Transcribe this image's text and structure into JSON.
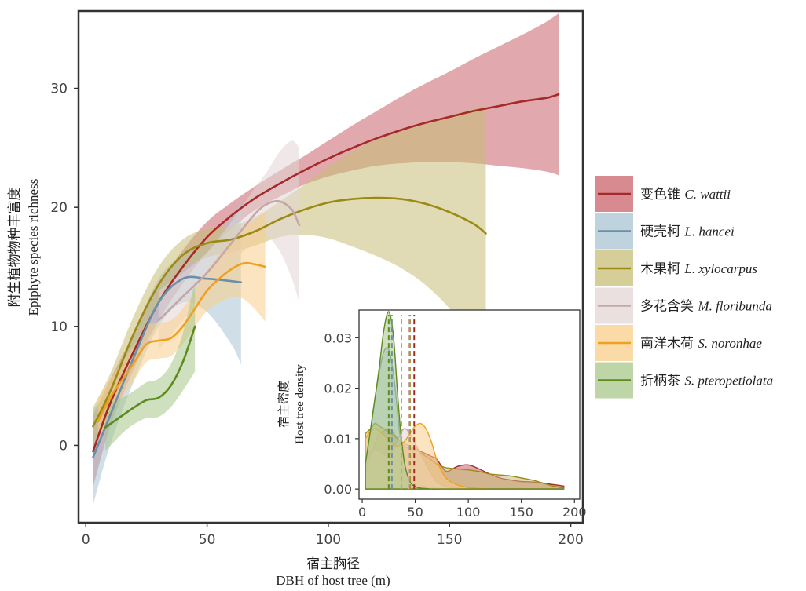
{
  "chart_data": [
    {
      "type": "line",
      "subtype": "smoothed-fit-with-confidence-band",
      "title": "",
      "xlabel_cn": "宿主胸径",
      "xlabel": "DBH of host tree (m)",
      "ylabel_cn": "附生植物物种丰富度",
      "ylabel": "Epiphyte species richness",
      "xlim": [
        -3,
        205
      ],
      "ylim": [
        -6.5,
        36.5
      ],
      "xticks": [
        0,
        50,
        100,
        150,
        200
      ],
      "yticks": [
        0,
        10,
        20,
        30
      ],
      "grid": false,
      "legend_position": "right",
      "series": [
        {
          "name_cn": "变色锥",
          "name": "C. wattii",
          "color": "#A52A2A",
          "band_color": "#C9636B",
          "x": [
            3,
            10,
            20,
            30,
            40,
            50,
            60,
            70,
            80,
            90,
            100,
            110,
            120,
            130,
            140,
            150,
            160,
            170,
            180,
            190,
            195
          ],
          "y": [
            -0.5,
            3.5,
            8.0,
            12.0,
            15.0,
            17.5,
            19.3,
            20.8,
            22.0,
            23.1,
            24.1,
            25.0,
            25.8,
            26.5,
            27.1,
            27.6,
            28.1,
            28.5,
            28.9,
            29.2,
            29.5
          ],
          "lower": [
            -3.5,
            1.5,
            6.5,
            10.5,
            13.6,
            16.2,
            18.2,
            19.8,
            20.9,
            21.9,
            22.6,
            23.1,
            23.5,
            23.7,
            23.8,
            23.8,
            23.7,
            23.5,
            23.3,
            23.0,
            22.7
          ],
          "upper": [
            2.5,
            5.5,
            9.5,
            13.5,
            16.4,
            18.8,
            20.4,
            21.8,
            23.1,
            24.3,
            25.6,
            26.9,
            28.1,
            29.3,
            30.4,
            31.4,
            32.5,
            33.5,
            34.5,
            35.6,
            36.3
          ]
        },
        {
          "name_cn": "硬壳柯",
          "name": "L. hancei",
          "color": "#6A8FA8",
          "band_color": "#A9C4D3",
          "x": [
            3,
            10,
            20,
            30,
            40,
            50,
            60,
            64
          ],
          "y": [
            -1.0,
            2.5,
            7.5,
            12.0,
            14.0,
            14.0,
            13.8,
            13.7
          ],
          "lower": [
            -5.0,
            0.0,
            5.5,
            10.0,
            12.0,
            11.2,
            8.5,
            6.8
          ],
          "upper": [
            3.0,
            5.0,
            9.5,
            14.0,
            16.0,
            16.8,
            19.1,
            20.6
          ]
        },
        {
          "name_cn": "木果柯",
          "name": "L. xylocarpus",
          "color": "#9A8A14",
          "band_color": "#C7BE76",
          "x": [
            3,
            10,
            20,
            30,
            40,
            50,
            60,
            70,
            80,
            90,
            100,
            110,
            120,
            130,
            140,
            150,
            160,
            165
          ],
          "y": [
            1.6,
            4.5,
            9.5,
            13.5,
            16.0,
            17.0,
            17.3,
            18.0,
            19.0,
            19.8,
            20.4,
            20.7,
            20.8,
            20.7,
            20.3,
            19.6,
            18.6,
            17.8
          ],
          "lower": [
            0.0,
            3.0,
            8.0,
            12.0,
            14.7,
            15.8,
            16.2,
            16.8,
            17.5,
            17.7,
            17.4,
            16.7,
            15.9,
            14.9,
            13.5,
            11.5,
            8.9,
            7.0
          ],
          "upper": [
            3.2,
            6.0,
            11.0,
            15.0,
            17.3,
            18.2,
            18.4,
            19.2,
            20.5,
            21.9,
            23.4,
            24.7,
            25.7,
            26.5,
            27.1,
            27.7,
            28.3,
            28.6
          ]
        },
        {
          "name_cn": "多花含笑",
          "name": "M. floribunda",
          "color": "#C4A7A7",
          "band_color": "#E3D6D6",
          "x": [
            30,
            40,
            50,
            60,
            70,
            75,
            80,
            85,
            88
          ],
          "y": [
            10.5,
            12.5,
            14.5,
            17.0,
            19.5,
            20.3,
            20.5,
            19.8,
            18.5
          ],
          "lower": [
            8.0,
            10.5,
            12.8,
            15.2,
            17.3,
            17.5,
            16.3,
            14.0,
            12.0
          ],
          "upper": [
            13.0,
            14.5,
            16.2,
            18.8,
            21.7,
            23.1,
            24.7,
            25.6,
            25.0
          ]
        },
        {
          "name_cn": "南洋木荷",
          "name": "S. noronhae",
          "color": "#F0A020",
          "band_color": "#F8CE8A",
          "x": [
            5,
            10,
            15,
            20,
            25,
            30,
            35,
            40,
            45,
            50,
            55,
            60,
            65,
            70,
            74
          ],
          "y": [
            2.0,
            4.0,
            5.5,
            7.0,
            8.5,
            8.8,
            9.0,
            10.0,
            11.5,
            13.0,
            14.0,
            14.8,
            15.3,
            15.2,
            15.0
          ],
          "lower": [
            0.0,
            2.5,
            4.0,
            5.5,
            7.0,
            7.3,
            7.5,
            8.5,
            10.0,
            11.3,
            12.0,
            12.4,
            12.3,
            11.4,
            10.4
          ],
          "upper": [
            4.0,
            5.5,
            7.0,
            8.5,
            10.0,
            10.3,
            10.5,
            11.5,
            13.0,
            14.7,
            16.0,
            17.2,
            18.3,
            19.0,
            19.6
          ]
        },
        {
          "name_cn": "折柄茶",
          "name": "S. pteropetiolata",
          "color": "#5E8A1E",
          "band_color": "#A8C78B",
          "x": [
            8,
            15,
            20,
            25,
            30,
            35,
            40,
            45
          ],
          "y": [
            1.5,
            2.5,
            3.2,
            3.8,
            4.0,
            5.0,
            7.0,
            10.0
          ],
          "lower": [
            -0.5,
            1.0,
            1.8,
            2.3,
            2.4,
            3.2,
            4.6,
            6.2
          ],
          "upper": [
            3.5,
            4.0,
            4.6,
            5.3,
            5.6,
            6.8,
            9.4,
            13.8
          ]
        }
      ]
    },
    {
      "type": "area",
      "subtype": "density-inset",
      "title": "",
      "xlabel": "",
      "ylabel_cn": "宿主密度",
      "ylabel": "Host tree density",
      "xlim": [
        -3,
        205
      ],
      "ylim": [
        -0.002,
        0.0355
      ],
      "xticks": [
        0,
        50,
        100,
        150,
        200
      ],
      "yticks": [
        0.0,
        0.01,
        0.02,
        0.03
      ],
      "ytick_labels": [
        "0.00",
        "0.01",
        "0.02",
        "0.03"
      ],
      "grid": false,
      "x": [
        3,
        8,
        12,
        16,
        20,
        24,
        27,
        30,
        33,
        36,
        40,
        45,
        50,
        55,
        60,
        65,
        70,
        75,
        80,
        90,
        100,
        110,
        120,
        130,
        140,
        150,
        160,
        170,
        180,
        190
      ],
      "series": [
        {
          "name": "C. wattii",
          "color": "#A52A2A",
          "fill": "#C9636B",
          "mean": 49,
          "values": [
            0.003,
            0.006,
            0.009,
            0.011,
            0.0115,
            0.012,
            0.0118,
            0.011,
            0.01,
            0.009,
            0.0085,
            0.008,
            0.008,
            0.0075,
            0.007,
            0.0065,
            0.006,
            0.0045,
            0.0035,
            0.0045,
            0.0048,
            0.004,
            0.003,
            0.0022,
            0.0018,
            0.0015,
            0.0014,
            0.0012,
            0.0009,
            0.0006
          ]
        },
        {
          "name": "L. hancei",
          "color": "#6A8FA8",
          "fill": "#A9C4D3",
          "mean": 28,
          "values": [
            0.005,
            0.012,
            0.018,
            0.023,
            0.027,
            0.028,
            0.026,
            0.022,
            0.016,
            0.01,
            0.005,
            0.002,
            0.001,
            0.0008,
            0.0005,
            0.0003,
            0.0002,
            0.0001,
            0.0,
            0.0,
            0.0,
            0.0,
            0.0,
            0.0,
            0.0,
            0.0,
            0.0,
            0.0,
            0.0,
            0.0
          ]
        },
        {
          "name": "L. xylocarpus",
          "color": "#9A8A14",
          "fill": "#C7BE76",
          "mean": 45,
          "values": [
            0.011,
            0.012,
            0.013,
            0.0125,
            0.012,
            0.0115,
            0.011,
            0.0105,
            0.01,
            0.0095,
            0.009,
            0.0085,
            0.008,
            0.0072,
            0.0065,
            0.0058,
            0.005,
            0.0045,
            0.0042,
            0.004,
            0.0038,
            0.0035,
            0.003,
            0.0028,
            0.0026,
            0.0022,
            0.0018,
            0.0012,
            0.0006,
            0.0002
          ]
        },
        {
          "name": "M. floribunda",
          "color": "#C4A7A7",
          "fill": "#E3D6D6",
          "mean": 44,
          "values": [
            0.004,
            0.007,
            0.008,
            0.0075,
            0.007,
            0.0065,
            0.007,
            0.008,
            0.0095,
            0.011,
            0.012,
            0.011,
            0.009,
            0.007,
            0.005,
            0.003,
            0.0015,
            0.0008,
            0.0004,
            0.0001,
            0.0,
            0.0,
            0.0,
            0.0,
            0.0,
            0.0,
            0.0,
            0.0,
            0.0,
            0.0
          ]
        },
        {
          "name": "S. noronhae",
          "color": "#F0A020",
          "fill": "#F8CE8A",
          "mean": 37,
          "values": [
            0.01,
            0.0115,
            0.012,
            0.0115,
            0.0108,
            0.01,
            0.0093,
            0.0088,
            0.0085,
            0.0088,
            0.0095,
            0.011,
            0.0125,
            0.013,
            0.012,
            0.0095,
            0.006,
            0.0035,
            0.002,
            0.0008,
            0.0003,
            0.0001,
            0.0,
            0.0,
            0.0,
            0.0,
            0.0,
            0.0,
            0.0,
            0.0
          ]
        },
        {
          "name": "S. pteropetiolata",
          "color": "#5E8A1E",
          "fill": "#A8C78B",
          "mean": 25,
          "values": [
            0.005,
            0.012,
            0.018,
            0.024,
            0.031,
            0.035,
            0.034,
            0.029,
            0.02,
            0.012,
            0.005,
            0.0015,
            0.0005,
            0.0002,
            0.0001,
            0.0,
            0.0,
            0.0,
            0.0,
            0.0,
            0.0,
            0.0,
            0.0,
            0.0,
            0.0,
            0.0,
            0.0,
            0.0,
            0.0,
            0.0
          ]
        }
      ]
    }
  ]
}
